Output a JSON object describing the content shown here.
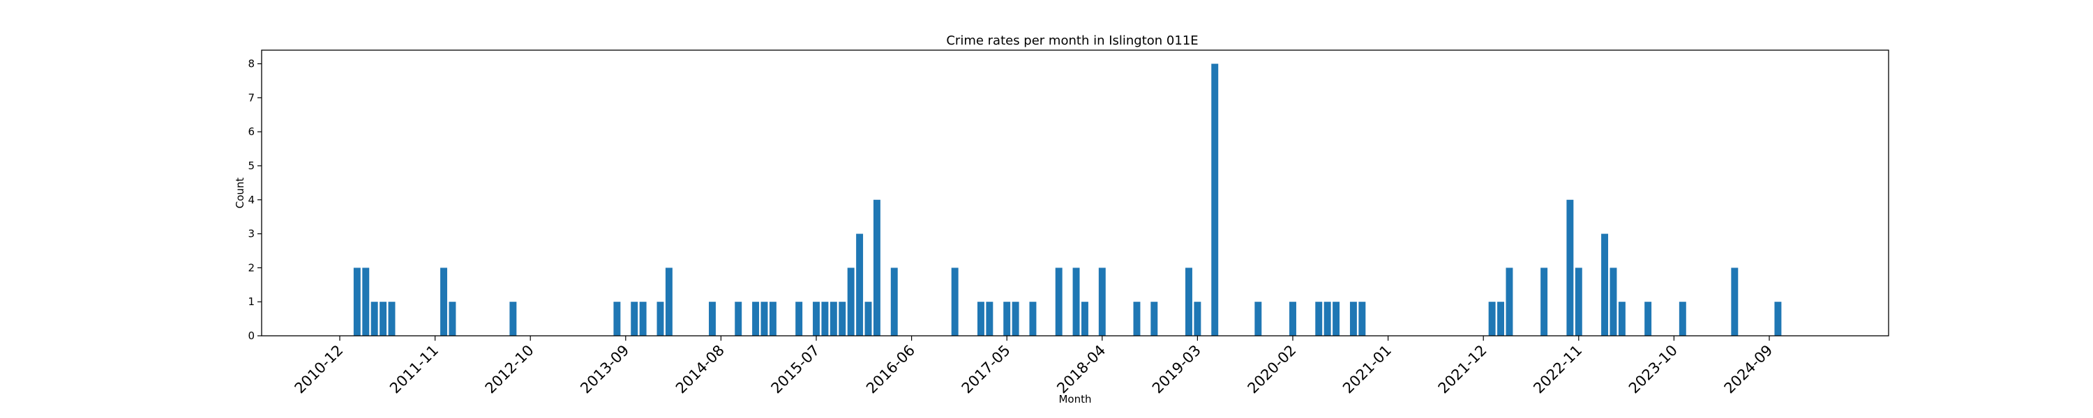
{
  "chart_data": {
    "type": "bar",
    "title": "Crime rates per month in Islington 011E",
    "xlabel": "Month",
    "ylabel": "Count",
    "ylim": [
      0,
      8.4
    ],
    "yticks": [
      0,
      1,
      2,
      3,
      4,
      5,
      6,
      7,
      8
    ],
    "xtick_labels": [
      "2010-12",
      "2011-11",
      "2012-10",
      "2013-09",
      "2014-08",
      "2015-07",
      "2016-06",
      "2017-05",
      "2018-04",
      "2019-03",
      "2020-02",
      "2021-01",
      "2021-12",
      "2022-11",
      "2023-10",
      "2024-09"
    ],
    "grid": false,
    "color": "#1f77b4",
    "categories": [
      "2011-02",
      "2011-03",
      "2011-04",
      "2011-05",
      "2011-06",
      "2011-12",
      "2012-01",
      "2012-08",
      "2013-08",
      "2013-10",
      "2013-11",
      "2014-01",
      "2014-02",
      "2014-07",
      "2014-10",
      "2014-12",
      "2015-01",
      "2015-02",
      "2015-05",
      "2015-07",
      "2015-08",
      "2015-09",
      "2015-10",
      "2015-11",
      "2015-12",
      "2016-01",
      "2016-02",
      "2016-04",
      "2016-11",
      "2017-02",
      "2017-03",
      "2017-05",
      "2017-06",
      "2017-08",
      "2017-11",
      "2018-01",
      "2018-02",
      "2018-04",
      "2018-08",
      "2018-10",
      "2019-02",
      "2019-03",
      "2019-05",
      "2019-10",
      "2020-02",
      "2020-05",
      "2020-06",
      "2020-07",
      "2020-09",
      "2020-10",
      "2022-01",
      "2022-02",
      "2022-03",
      "2022-07",
      "2022-10",
      "2022-11",
      "2023-02",
      "2023-03",
      "2023-04",
      "2023-07",
      "2023-11",
      "2024-05",
      "2024-10"
    ],
    "values": [
      2,
      2,
      1,
      1,
      1,
      2,
      1,
      1,
      1,
      1,
      1,
      1,
      2,
      1,
      1,
      1,
      1,
      1,
      1,
      1,
      1,
      1,
      1,
      2,
      3,
      1,
      4,
      2,
      2,
      1,
      1,
      1,
      1,
      1,
      2,
      2,
      1,
      2,
      1,
      1,
      2,
      1,
      8,
      1,
      1,
      1,
      1,
      1,
      1,
      1,
      1,
      1,
      2,
      2,
      4,
      2,
      3,
      2,
      1,
      1,
      1,
      2,
      1
    ]
  }
}
